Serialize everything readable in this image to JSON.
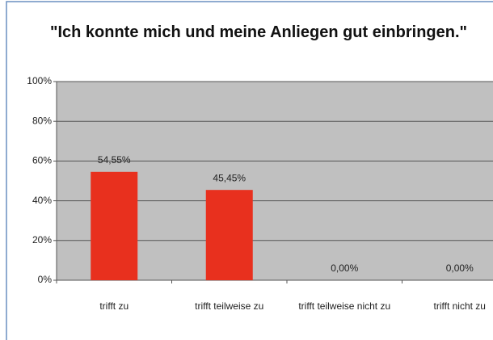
{
  "chart_data": {
    "type": "bar",
    "title": "\"Ich konnte mich und meine Anliegen gut einbringen.\"",
    "categories": [
      "trifft zu",
      "trifft teilweise zu",
      "trifft teilweise nicht zu",
      "trifft nicht zu"
    ],
    "values": [
      54.55,
      45.45,
      0,
      0
    ],
    "value_labels": [
      "54,55%",
      "45,45%",
      "0,00%",
      "0,00%"
    ],
    "color": "#e8301e",
    "ylim": [
      0,
      100
    ],
    "yticks": [
      {
        "value": 0,
        "label": "0%"
      },
      {
        "value": 20,
        "label": "20%"
      },
      {
        "value": 40,
        "label": "40%"
      },
      {
        "value": 60,
        "label": "60%"
      },
      {
        "value": 80,
        "label": "80%"
      },
      {
        "value": 100,
        "label": "100%"
      }
    ],
    "grid": true
  }
}
